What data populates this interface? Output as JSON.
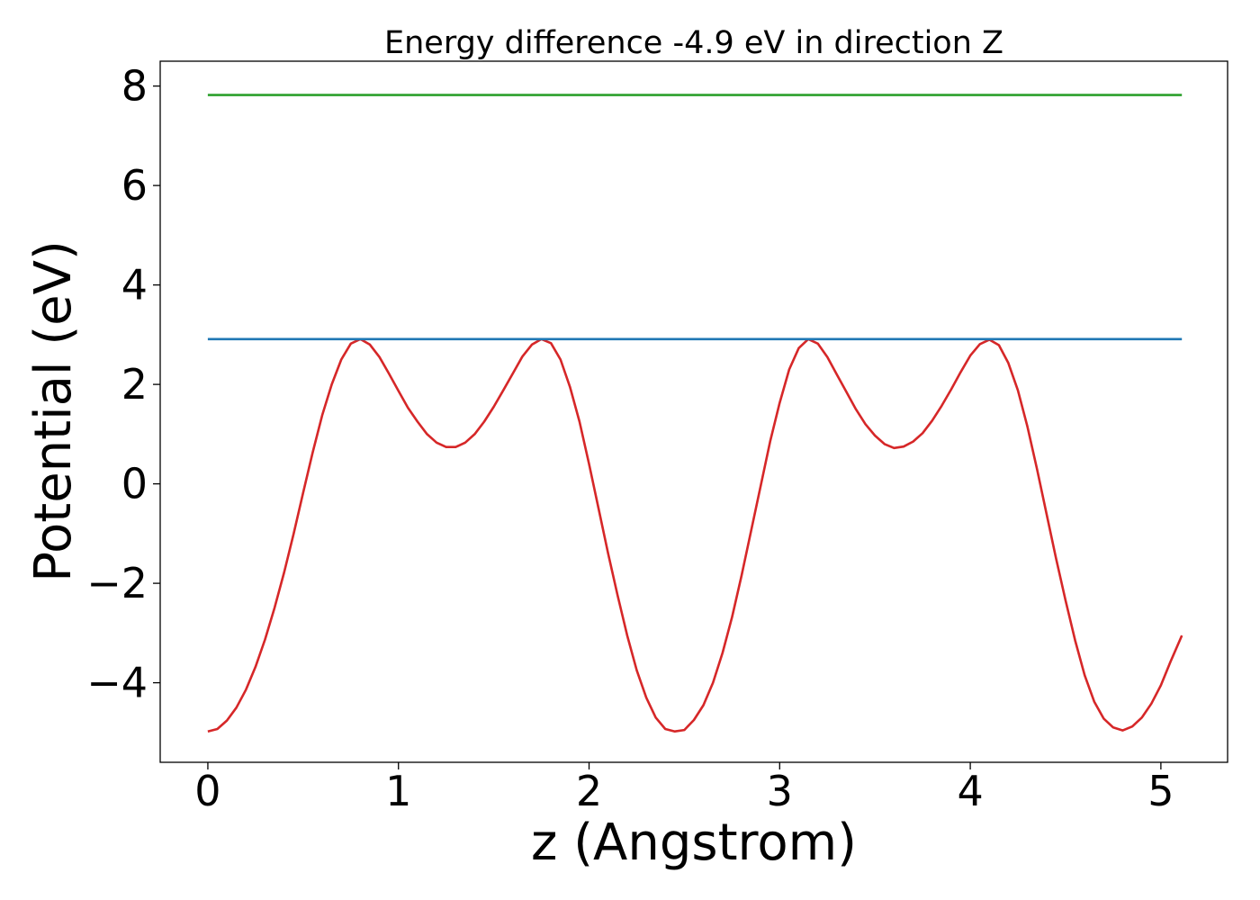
{
  "chart_data": {
    "type": "line",
    "title": "Energy difference -4.9 eV in direction Z",
    "xlabel": "z (Angstrom)",
    "ylabel": "Potential (eV)",
    "xlim": [
      -0.25,
      5.35
    ],
    "ylim": [
      -5.6,
      8.5
    ],
    "xticks": [
      0,
      1,
      2,
      3,
      4,
      5
    ],
    "xtick_labels": [
      "0",
      "1",
      "2",
      "3",
      "4",
      "5"
    ],
    "yticks": [
      -4,
      -2,
      0,
      2,
      4,
      6,
      8
    ],
    "ytick_labels": [
      "−4",
      "−2",
      "0",
      "2",
      "4",
      "6",
      "8"
    ],
    "grid": false,
    "series": [
      {
        "color": "#d62728",
        "x": [
          0.0,
          0.05,
          0.1,
          0.15,
          0.2,
          0.25,
          0.3,
          0.35,
          0.4,
          0.45,
          0.5,
          0.55,
          0.6,
          0.65,
          0.7,
          0.75,
          0.8,
          0.85,
          0.9,
          0.95,
          1.0,
          1.05,
          1.1,
          1.15,
          1.2,
          1.25,
          1.3,
          1.35,
          1.4,
          1.45,
          1.5,
          1.55,
          1.6,
          1.65,
          1.7,
          1.75,
          1.8,
          1.85,
          1.9,
          1.95,
          2.0,
          2.05,
          2.1,
          2.15,
          2.2,
          2.25,
          2.3,
          2.35,
          2.4,
          2.45,
          2.5,
          2.55,
          2.6,
          2.65,
          2.7,
          2.75,
          2.8,
          2.85,
          2.9,
          2.95,
          3.0,
          3.05,
          3.1,
          3.15,
          3.2,
          3.25,
          3.3,
          3.35,
          3.4,
          3.45,
          3.5,
          3.55,
          3.6,
          3.65,
          3.7,
          3.75,
          3.8,
          3.85,
          3.9,
          3.95,
          4.0,
          4.05,
          4.1,
          4.15,
          4.2,
          4.25,
          4.3,
          4.35,
          4.4,
          4.45,
          4.5,
          4.55,
          4.6,
          4.65,
          4.7,
          4.75,
          4.8,
          4.85,
          4.9,
          4.95,
          5.0,
          5.05,
          5.11
        ],
        "y": [
          -4.98,
          -4.93,
          -4.76,
          -4.5,
          -4.14,
          -3.68,
          -3.13,
          -2.49,
          -1.78,
          -1.0,
          -0.18,
          0.63,
          1.38,
          2.0,
          2.5,
          2.82,
          2.91,
          2.8,
          2.55,
          2.22,
          1.87,
          1.53,
          1.25,
          1.0,
          0.83,
          0.74,
          0.74,
          0.83,
          1.0,
          1.25,
          1.55,
          1.88,
          2.22,
          2.56,
          2.8,
          2.91,
          2.83,
          2.5,
          1.95,
          1.25,
          0.4,
          -0.5,
          -1.4,
          -2.25,
          -3.05,
          -3.75,
          -4.3,
          -4.7,
          -4.93,
          -4.98,
          -4.95,
          -4.75,
          -4.45,
          -4.0,
          -3.4,
          -2.68,
          -1.85,
          -0.95,
          -0.05,
          0.85,
          1.63,
          2.3,
          2.73,
          2.91,
          2.82,
          2.55,
          2.2,
          1.85,
          1.5,
          1.2,
          0.97,
          0.8,
          0.72,
          0.75,
          0.85,
          1.02,
          1.27,
          1.57,
          1.9,
          2.25,
          2.58,
          2.81,
          2.9,
          2.79,
          2.43,
          1.88,
          1.15,
          0.3,
          -0.6,
          -1.5,
          -2.35,
          -3.15,
          -3.85,
          -4.38,
          -4.72,
          -4.9,
          -4.96,
          -4.88,
          -4.7,
          -4.42,
          -4.05,
          -3.58,
          -3.05
        ]
      },
      {
        "color": "#1f77b4",
        "x": [
          0.0,
          5.11
        ],
        "y": [
          2.91,
          2.91
        ]
      },
      {
        "color": "#2ca02c",
        "x": [
          0.0,
          5.11
        ],
        "y": [
          7.82,
          7.82
        ]
      }
    ]
  }
}
